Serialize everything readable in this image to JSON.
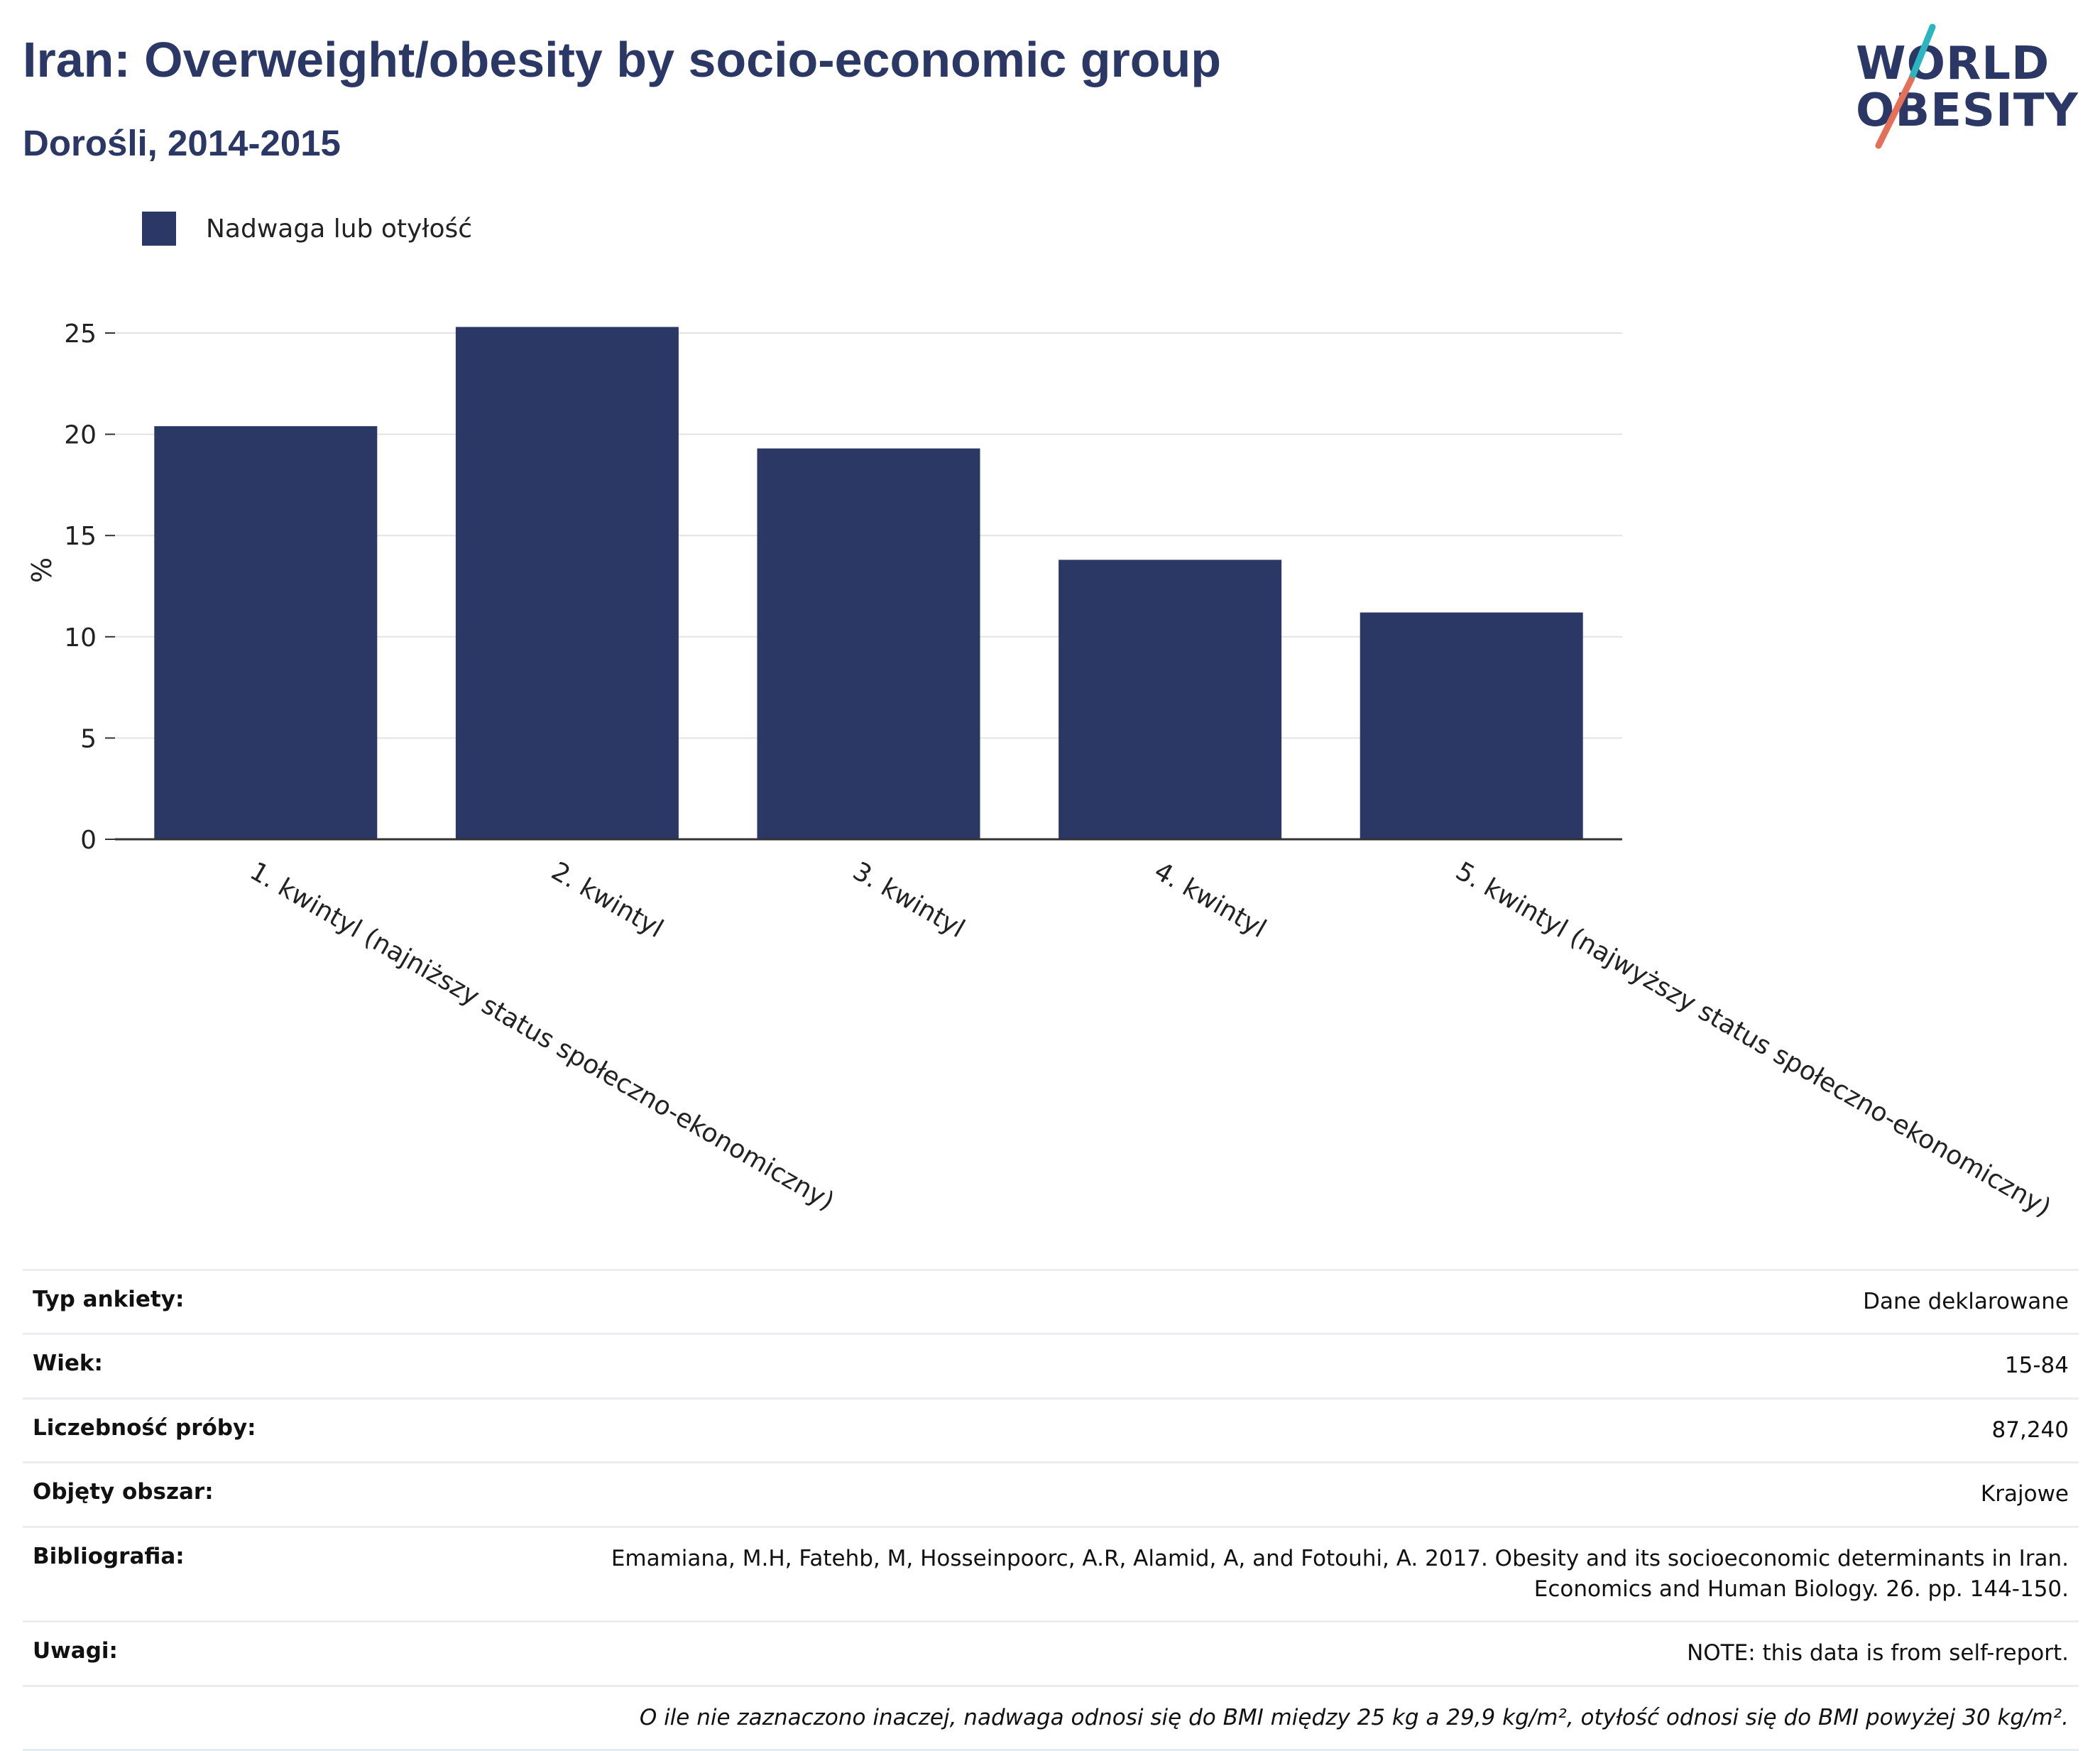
{
  "header": {
    "title": "Iran: Overweight/obesity by socio-economic group",
    "subtitle": "Dorośli, 2014-2015"
  },
  "logo": {
    "line1": "WORLD",
    "line2": "OBESITY",
    "colors": {
      "text": "#2b3765",
      "slash_top": "#2bb5c0",
      "slash_bottom": "#e5705a"
    }
  },
  "chart_data": {
    "type": "bar",
    "categories": [
      "1. kwintyl (najniższy status społeczno-ekonomiczny)",
      "2. kwintyl",
      "3. kwintyl",
      "4. kwintyl",
      "5. kwintyl (najwyższy status społeczno-ekonomiczny)"
    ],
    "series": [
      {
        "name": "Nadwaga lub otyłość",
        "values": [
          20.4,
          25.3,
          19.3,
          13.8,
          11.2
        ],
        "color": "#2b3765"
      }
    ],
    "ylabel": "%",
    "xlabel": "",
    "ylim": [
      0,
      26.5
    ],
    "yticks": [
      0,
      5,
      10,
      15,
      20,
      25
    ],
    "grid": true,
    "legend": "top-left"
  },
  "meta": {
    "rows": [
      {
        "label": "Typ ankiety:",
        "value": "Dane deklarowane"
      },
      {
        "label": "Wiek:",
        "value": "15-84"
      },
      {
        "label": "Liczebność próby:",
        "value": "87,240"
      },
      {
        "label": "Objęty obszar:",
        "value": "Krajowe"
      },
      {
        "label": "Bibliografia:",
        "value": "Emamiana, M.H, Fatehb, M, Hosseinpoorc, A.R, Alamid, A, and Fotouhi, A. 2017. Obesity and its socioeconomic determinants in Iran. Economics and Human Biology. 26. pp. 144-150."
      },
      {
        "label": "Uwagi:",
        "value": "NOTE: this data is from self-report."
      }
    ],
    "footnote": "O ile nie zaznaczono inaczej, nadwaga odnosi się do BMI między 25 kg a 29,9 kg/m², otyłość odnosi się do BMI powyżej 30 kg/m²."
  }
}
